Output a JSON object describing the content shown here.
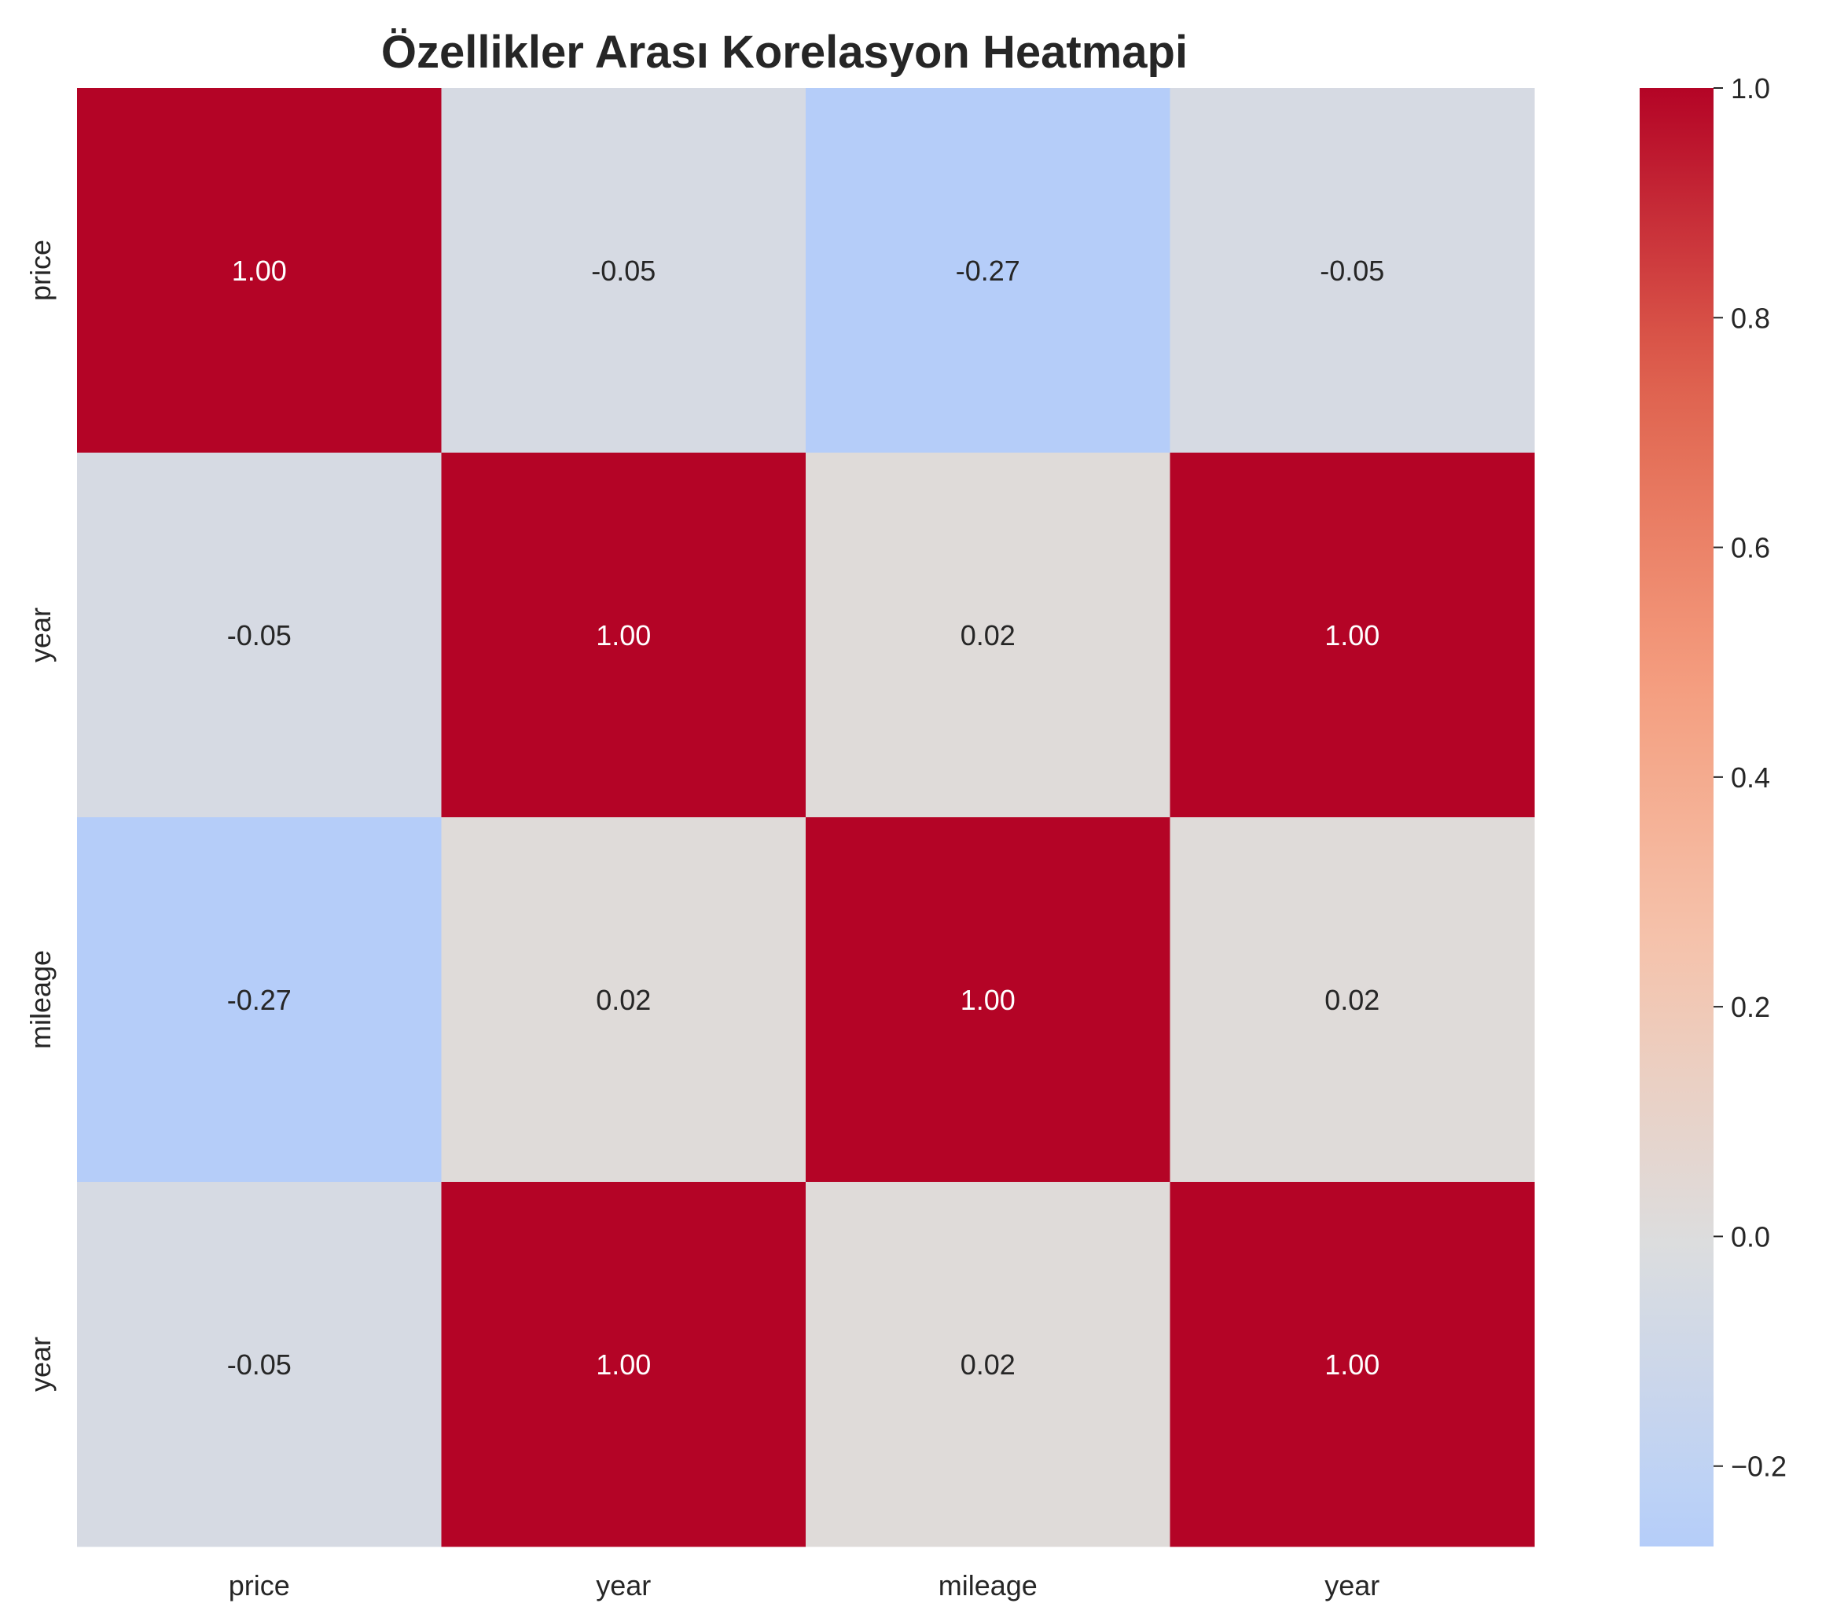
{
  "chart_data": {
    "type": "heatmap",
    "title": "Özellikler Arası Korelasyon Heatmapi",
    "x_labels": [
      "price",
      "year",
      "mileage",
      "year"
    ],
    "y_labels": [
      "price",
      "year",
      "mileage",
      "year"
    ],
    "values": [
      [
        1.0,
        -0.05,
        -0.27,
        -0.05
      ],
      [
        -0.05,
        1.0,
        0.02,
        1.0
      ],
      [
        -0.27,
        0.02,
        1.0,
        0.02
      ],
      [
        -0.05,
        1.0,
        0.02,
        1.0
      ]
    ],
    "cell_labels": [
      [
        "1.00",
        "-0.05",
        "-0.27",
        "-0.05"
      ],
      [
        "-0.05",
        "1.00",
        "0.02",
        "1.00"
      ],
      [
        "-0.27",
        "0.02",
        "1.00",
        "0.02"
      ],
      [
        "-0.05",
        "1.00",
        "0.02",
        "1.00"
      ]
    ],
    "colormap": "coolwarm",
    "center": 0,
    "vmin": -0.27,
    "vmax": 1.0,
    "colorbar": {
      "ticks": [
        1.0,
        0.8,
        0.6,
        0.4,
        0.2,
        0.0,
        -0.2
      ],
      "tick_labels": [
        "1.0",
        "0.8",
        "0.6",
        "0.4",
        "0.2",
        "0.0",
        "−0.2"
      ],
      "placement": "right"
    },
    "grid": false
  }
}
